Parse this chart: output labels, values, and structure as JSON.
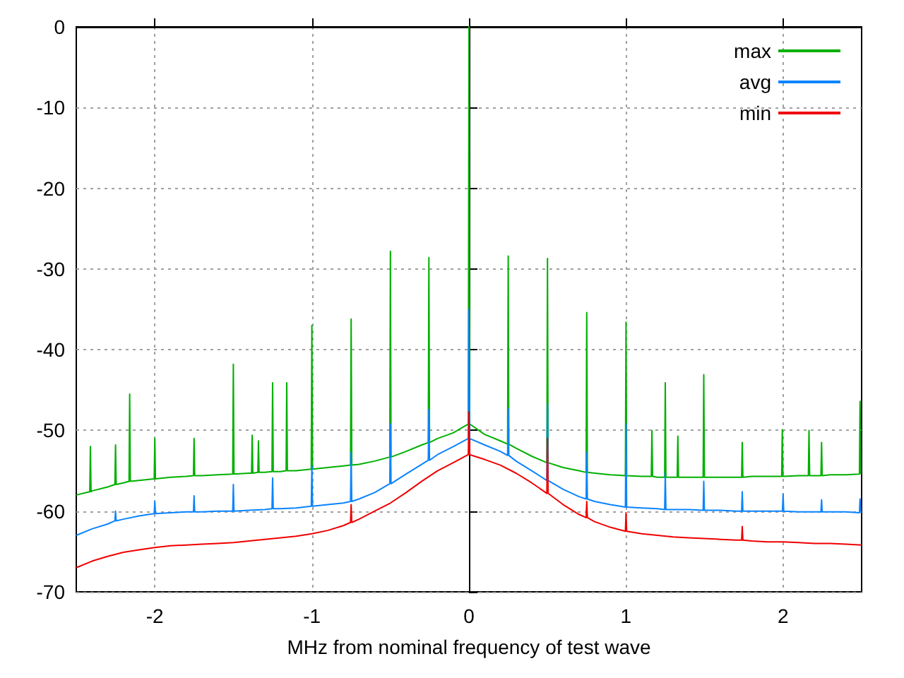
{
  "chart_data": {
    "type": "line",
    "xlabel": "MHz from nominal frequency of test wave",
    "xlim": [
      -2.5,
      2.5
    ],
    "xticks": [
      -2,
      -1,
      0,
      1,
      2
    ],
    "ylim": [
      -70,
      0
    ],
    "yticks": [
      -70,
      -60,
      -50,
      -40,
      -30,
      -20,
      -10,
      0
    ],
    "grid": true,
    "legend": "top right",
    "marker": "none",
    "series": [
      {
        "name": "max",
        "color": "#00b000",
        "x": [
          -2.5,
          -2.414,
          -2.41,
          -2.406,
          -2.4,
          -2.3,
          -2.254,
          -2.25,
          -2.246,
          -2.2,
          -2.164,
          -2.16,
          -2.156,
          -2.1,
          -2.004,
          -2.0,
          -1.996,
          -1.9,
          -1.8,
          -1.754,
          -1.75,
          -1.746,
          -1.7,
          -1.6,
          -1.504,
          -1.5,
          -1.496,
          -1.4,
          -1.384,
          -1.38,
          -1.376,
          -1.344,
          -1.34,
          -1.336,
          -1.3,
          -1.254,
          -1.25,
          -1.246,
          -1.2,
          -1.164,
          -1.16,
          -1.156,
          -1.1,
          -1.004,
          -1.0,
          -0.996,
          -0.9,
          -0.8,
          -0.754,
          -0.75,
          -0.746,
          -0.7,
          -0.6,
          -0.504,
          -0.5,
          -0.496,
          -0.4,
          -0.3,
          -0.259,
          -0.255,
          -0.251,
          -0.2,
          -0.1,
          -0.004,
          0,
          0.004,
          0.1,
          0.2,
          0.246,
          0.25,
          0.254,
          0.3,
          0.4,
          0.496,
          0.5,
          0.504,
          0.6,
          0.7,
          0.746,
          0.75,
          0.754,
          0.8,
          0.9,
          0.996,
          1.0,
          1.004,
          1.1,
          1.161,
          1.165,
          1.169,
          1.2,
          1.246,
          1.25,
          1.254,
          1.3,
          1.326,
          1.33,
          1.334,
          1.4,
          1.491,
          1.495,
          1.499,
          1.6,
          1.7,
          1.736,
          1.74,
          1.744,
          1.8,
          1.9,
          1.991,
          1.995,
          1.999,
          2.1,
          2.161,
          2.165,
          2.169,
          2.2,
          2.241,
          2.245,
          2.249,
          2.3,
          2.4,
          2.486,
          2.49,
          2.494,
          2.5
        ],
        "values": [
          -58,
          -57.6,
          -52,
          -57.6,
          -57.5,
          -57,
          -56.7,
          -51.8,
          -56.7,
          -56.5,
          -56.3,
          -45.5,
          -56.3,
          -56.2,
          -56,
          -51,
          -56,
          -55.8,
          -55.7,
          -55.6,
          -51,
          -55.6,
          -55.6,
          -55.5,
          -55.4,
          -41.8,
          -55.4,
          -55.3,
          -55.3,
          -50.6,
          -55.3,
          -55.2,
          -51.3,
          -55.2,
          -55.2,
          -55.1,
          -44.1,
          -55.1,
          -55.1,
          -55,
          -44.1,
          -55,
          -55,
          -54.8,
          -37,
          -54.8,
          -54.6,
          -54.4,
          -54.3,
          -36.2,
          -54.3,
          -54.2,
          -53.8,
          -53.3,
          -27.8,
          -53.3,
          -52.6,
          -51.8,
          -51.5,
          -28.6,
          -51.5,
          -51,
          -50.3,
          -49.2,
          0,
          -49.2,
          -50.5,
          -51.3,
          -51.7,
          -28.4,
          -51.7,
          -52.2,
          -53.2,
          -54,
          -28.7,
          -54,
          -54.6,
          -55,
          -55.2,
          -35.4,
          -55.2,
          -55.3,
          -55.5,
          -55.6,
          -36.6,
          -55.6,
          -55.7,
          -55.7,
          -50,
          -55.7,
          -55.8,
          -55.8,
          -44.1,
          -55.8,
          -55.8,
          -55.8,
          -50.7,
          -55.8,
          -55.8,
          -55.8,
          -43.1,
          -55.8,
          -55.8,
          -55.8,
          -55.8,
          -51.5,
          -55.8,
          -55.7,
          -55.7,
          -55.7,
          -49.9,
          -55.7,
          -55.6,
          -55.6,
          -50,
          -55.6,
          -55.6,
          -55.6,
          -51.5,
          -55.6,
          -55.5,
          -55.5,
          -55.4,
          -46.4,
          -55.4,
          -55.4
        ]
      },
      {
        "name": "avg",
        "color": "#0a84ff",
        "x": [
          -2.5,
          -2.4,
          -2.3,
          -2.254,
          -2.25,
          -2.246,
          -2.2,
          -2.1,
          -2.004,
          -2.0,
          -1.996,
          -1.9,
          -1.8,
          -1.754,
          -1.75,
          -1.746,
          -1.7,
          -1.6,
          -1.504,
          -1.5,
          -1.496,
          -1.4,
          -1.3,
          -1.254,
          -1.25,
          -1.246,
          -1.2,
          -1.1,
          -1.004,
          -1.0,
          -0.996,
          -0.9,
          -0.8,
          -0.754,
          -0.75,
          -0.746,
          -0.7,
          -0.6,
          -0.504,
          -0.5,
          -0.496,
          -0.4,
          -0.3,
          -0.259,
          -0.255,
          -0.251,
          -0.2,
          -0.1,
          -0.004,
          0,
          0.004,
          0.1,
          0.2,
          0.246,
          0.25,
          0.254,
          0.3,
          0.4,
          0.496,
          0.5,
          0.504,
          0.6,
          0.7,
          0.746,
          0.75,
          0.754,
          0.8,
          0.9,
          0.996,
          1.0,
          1.004,
          1.1,
          1.2,
          1.246,
          1.25,
          1.254,
          1.3,
          1.4,
          1.491,
          1.495,
          1.499,
          1.6,
          1.7,
          1.736,
          1.74,
          1.744,
          1.8,
          1.9,
          1.996,
          2.0,
          2.004,
          2.1,
          2.2,
          2.241,
          2.245,
          2.249,
          2.3,
          2.4,
          2.486,
          2.49,
          2.494,
          2.5
        ],
        "values": [
          -63,
          -62.2,
          -61.6,
          -61.2,
          -60,
          -61.2,
          -61,
          -60.6,
          -60.3,
          -58.8,
          -60.3,
          -60.2,
          -60.1,
          -60.1,
          -58.1,
          -60.1,
          -60.1,
          -60,
          -60,
          -56.7,
          -60,
          -59.9,
          -59.8,
          -59.7,
          -55.9,
          -59.7,
          -59.7,
          -59.6,
          -59.4,
          -54.4,
          -59.4,
          -59.2,
          -59,
          -58.8,
          -52.7,
          -58.8,
          -58.5,
          -57.7,
          -56.6,
          -49.2,
          -56.6,
          -55.4,
          -54.2,
          -53.7,
          -47.4,
          -53.7,
          -53,
          -52,
          -51,
          -35,
          -51,
          -51.8,
          -52.6,
          -53.1,
          -47.3,
          -53.1,
          -53.8,
          -55,
          -56.2,
          -46.7,
          -56.2,
          -57.3,
          -58.2,
          -58.5,
          -52.7,
          -58.5,
          -58.8,
          -59.2,
          -59.5,
          -49.2,
          -59.5,
          -59.6,
          -59.7,
          -59.8,
          -55.3,
          -59.8,
          -59.8,
          -59.8,
          -59.9,
          -56.3,
          -59.9,
          -59.9,
          -60,
          -60,
          -57.6,
          -60,
          -60,
          -60,
          -60,
          -57.9,
          -60,
          -60.1,
          -60.1,
          -60.1,
          -58.6,
          -60.1,
          -60.1,
          -60.1,
          -60.2,
          -58.5,
          -60.2,
          -60.2
        ]
      },
      {
        "name": "min",
        "color": "#f00000",
        "x": [
          -2.5,
          -2.4,
          -2.3,
          -2.2,
          -2.1,
          -2.0,
          -1.9,
          -1.8,
          -1.7,
          -1.6,
          -1.5,
          -1.4,
          -1.3,
          -1.2,
          -1.1,
          -1.0,
          -0.9,
          -0.8,
          -0.754,
          -0.75,
          -0.746,
          -0.7,
          -0.6,
          -0.5,
          -0.4,
          -0.3,
          -0.2,
          -0.1,
          -0.004,
          0,
          0.004,
          0.1,
          0.2,
          0.3,
          0.4,
          0.496,
          0.5,
          0.504,
          0.6,
          0.7,
          0.746,
          0.75,
          0.754,
          0.8,
          0.9,
          0.996,
          1.0,
          1.004,
          1.1,
          1.2,
          1.3,
          1.4,
          1.5,
          1.6,
          1.7,
          1.736,
          1.74,
          1.744,
          1.8,
          1.9,
          2.0,
          2.1,
          2.2,
          2.3,
          2.4,
          2.5
        ],
        "values": [
          -67,
          -66.2,
          -65.6,
          -65.1,
          -64.8,
          -64.5,
          -64.3,
          -64.2,
          -64.1,
          -64,
          -63.9,
          -63.7,
          -63.5,
          -63.3,
          -63.1,
          -62.8,
          -62.4,
          -61.8,
          -61.4,
          -59.2,
          -61.4,
          -61,
          -60,
          -59,
          -57.7,
          -56.3,
          -55,
          -54,
          -53,
          -47.7,
          -53,
          -53.6,
          -54.3,
          -55.3,
          -56.5,
          -57.8,
          -51,
          -57.8,
          -59.2,
          -60.4,
          -60.8,
          -58.8,
          -60.8,
          -61.3,
          -62,
          -62.5,
          -60.2,
          -62.5,
          -62.8,
          -63,
          -63.2,
          -63.3,
          -63.4,
          -63.5,
          -63.6,
          -63.6,
          -61.9,
          -63.6,
          -63.7,
          -63.8,
          -63.8,
          -63.9,
          -64,
          -64,
          -64.1,
          -64.2
        ]
      }
    ]
  }
}
